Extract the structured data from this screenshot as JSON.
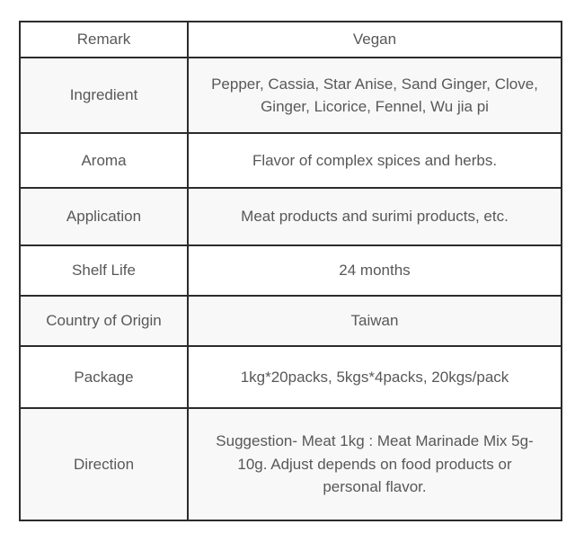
{
  "table": {
    "rows": [
      {
        "label": "Remark",
        "value": "Vegan"
      },
      {
        "label": "Ingredient",
        "value": "Pepper, Cassia, Star Anise, Sand Ginger, Clove, Ginger, Licorice, Fennel, Wu jia pi"
      },
      {
        "label": "Aroma",
        "value": "Flavor of complex spices and herbs."
      },
      {
        "label": "Application",
        "value": "Meat products and surimi products, etc."
      },
      {
        "label": "Shelf Life",
        "value": "24 months"
      },
      {
        "label": "Country of Origin",
        "value": "Taiwan"
      },
      {
        "label": "Package",
        "value": "1kg*20packs, 5kgs*4packs, 20kgs/pack"
      },
      {
        "label": "Direction",
        "value": "Suggestion- Meat 1kg : Meat Marinade Mix 5g-10g. Adjust depends on food products or personal flavor."
      }
    ],
    "colors": {
      "border": "#2b2b2b",
      "text": "#58585a",
      "row_bg": "#ffffff",
      "row_alt_bg": "#f8f8f8"
    }
  }
}
